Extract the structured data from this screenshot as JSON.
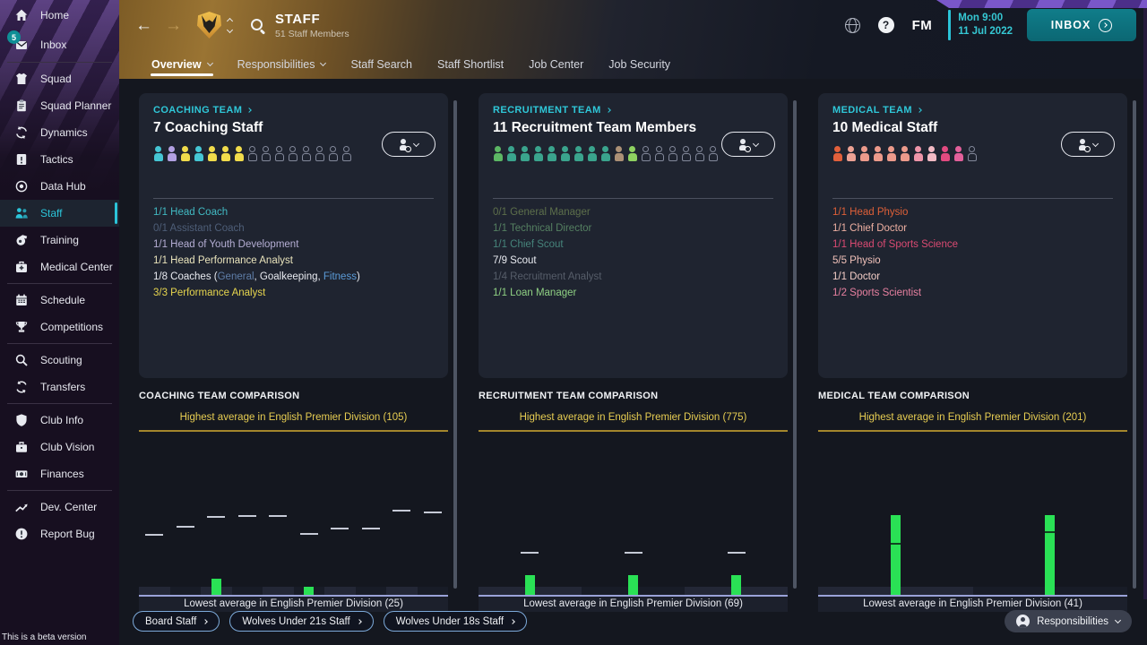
{
  "header": {
    "title": "STAFF",
    "subtitle": "51 Staff Members",
    "fm_label": "FM",
    "time": "Mon 9:00",
    "date": "11 Jul 2022",
    "inbox_label": "INBOX"
  },
  "tabs": [
    {
      "label": "Overview",
      "caret": true,
      "selected": true
    },
    {
      "label": "Responsibilities",
      "caret": true,
      "selected": false
    },
    {
      "label": "Staff Search",
      "caret": false,
      "selected": false
    },
    {
      "label": "Staff Shortlist",
      "caret": false,
      "selected": false
    },
    {
      "label": "Job Center",
      "caret": false,
      "selected": false
    },
    {
      "label": "Job Security",
      "caret": false,
      "selected": false
    }
  ],
  "sidebar": {
    "items": [
      {
        "label": "Home",
        "icon": "home"
      },
      {
        "label": "Inbox",
        "icon": "inbox",
        "badge": "5"
      },
      {
        "label": "Squad",
        "icon": "squad",
        "divider_above": true
      },
      {
        "label": "Squad Planner",
        "icon": "squad-planner"
      },
      {
        "label": "Dynamics",
        "icon": "dynamics"
      },
      {
        "label": "Tactics",
        "icon": "tactics"
      },
      {
        "label": "Data Hub",
        "icon": "data-hub"
      },
      {
        "label": "Staff",
        "icon": "staff",
        "selected": true
      },
      {
        "label": "Training",
        "icon": "training"
      },
      {
        "label": "Medical Center",
        "icon": "medical-center"
      },
      {
        "label": "Schedule",
        "icon": "schedule",
        "divider_above": true
      },
      {
        "label": "Competitions",
        "icon": "competitions"
      },
      {
        "label": "Scouting",
        "icon": "scouting",
        "divider_above": true
      },
      {
        "label": "Transfers",
        "icon": "transfers"
      },
      {
        "label": "Club Info",
        "icon": "club-info",
        "divider_above": true
      },
      {
        "label": "Club Vision",
        "icon": "club-vision"
      },
      {
        "label": "Finances",
        "icon": "finances"
      },
      {
        "label": "Dev. Center",
        "icon": "dev-center",
        "divider_above": true
      },
      {
        "label": "Report Bug",
        "icon": "report-bug"
      }
    ],
    "beta_note": "This is a beta version"
  },
  "teams": [
    {
      "section_label": "COACHING TEAM",
      "title": "7 Coaching Staff",
      "icons": {
        "filled": [
          "#45c6d4",
          "#b2a0e2",
          "#f1dc4b",
          "#45c6d4",
          "#f1dc4b",
          "#f1dc4b",
          "#f1dc4b"
        ],
        "empty": 8
      },
      "roles": [
        {
          "parts": [
            {
              "t": "1/1 Head Coach",
              "c": "#41b9c2"
            }
          ]
        },
        {
          "parts": [
            {
              "t": "0/1 Assistant Coach",
              "c": "#4e5e78"
            }
          ]
        },
        {
          "parts": [
            {
              "t": "1/1 Head of Youth Development",
              "c": "#b5aed4"
            }
          ]
        },
        {
          "parts": [
            {
              "t": "1/1 Head Performance Analyst",
              "c": "#eae4bc"
            }
          ]
        },
        {
          "parts": [
            {
              "t": "1/8 Coaches (",
              "c": "#e9ebf1"
            },
            {
              "t": "General",
              "c": "#5f7ea8"
            },
            {
              "t": ", ",
              "c": "#e9ebf1"
            },
            {
              "t": "Goalkeeping",
              "c": "#e9ebf1"
            },
            {
              "t": ", ",
              "c": "#e9ebf1"
            },
            {
              "t": "Fitness",
              "c": "#5b9bd8"
            },
            {
              "t": ")",
              "c": "#e9ebf1"
            }
          ]
        },
        {
          "parts": [
            {
              "t": "3/3 Performance Analyst",
              "c": "#e6d54e"
            }
          ]
        }
      ],
      "comparison": {
        "heading": "COACHING TEAM COMPARISON",
        "highest": "Highest average in English Premier Division (105)",
        "lowest": "Lowest average in English Premier Division (25)",
        "columns": [
          {
            "avg": 0.36
          },
          {
            "avg": 0.41
          },
          {
            "avg": 0.47,
            "bar": 0.1
          },
          {
            "avg": 0.48
          },
          {
            "avg": 0.48
          },
          {
            "avg": 0.37,
            "bar": 0.05
          },
          {
            "avg": 0.4
          },
          {
            "avg": 0.4
          },
          {
            "avg": 0.51
          },
          {
            "avg": 0.5
          }
        ]
      }
    },
    {
      "section_label": "RECRUITMENT TEAM",
      "title": "11 Recruitment Team Members",
      "icons": {
        "filled": [
          "#5cb764",
          "#3aa48d",
          "#3aa48d",
          "#3aa48d",
          "#3aa48d",
          "#3aa48d",
          "#3aa48d",
          "#3aa48d",
          "#3aa48d",
          "#ab9076",
          "#8ed160"
        ],
        "empty": 6
      },
      "roles": [
        {
          "parts": [
            {
              "t": "0/1 General Manager",
              "c": "#5d6f4b"
            }
          ]
        },
        {
          "parts": [
            {
              "t": "1/1 Technical Director",
              "c": "#558061"
            }
          ]
        },
        {
          "parts": [
            {
              "t": "1/1 Chief Scout",
              "c": "#46847b"
            }
          ]
        },
        {
          "parts": [
            {
              "t": "7/9 Scout",
              "c": "#e9ebf1"
            }
          ]
        },
        {
          "parts": [
            {
              "t": "1/4 Recruitment Analyst",
              "c": "#565d69"
            }
          ]
        },
        {
          "parts": [
            {
              "t": "1/1 Loan Manager",
              "c": "#8fd083"
            }
          ]
        }
      ],
      "comparison": {
        "heading": "RECRUITMENT TEAM COMPARISON",
        "highest": "Highest average in English Premier Division (775)",
        "lowest": "Lowest average in English Premier Division (69)",
        "columns": [
          {
            "avg": 0.25,
            "bar": 0.12
          },
          {
            "avg": 0.25,
            "bar": 0.12
          },
          {
            "avg": 0.25,
            "bar": 0.12
          }
        ]
      }
    },
    {
      "section_label": "MEDICAL TEAM",
      "title": "10 Medical Staff",
      "icons": {
        "filled": [
          "#e2603b",
          "#eda294",
          "#ec9a8b",
          "#ec9a8b",
          "#ec9a8b",
          "#ec9a8b",
          "#ee95a9",
          "#f2bac4",
          "#e24a80",
          "#e2609a"
        ],
        "empty": 1
      },
      "roles": [
        {
          "parts": [
            {
              "t": "1/1 Head Physio",
              "c": "#df6038"
            }
          ]
        },
        {
          "parts": [
            {
              "t": "1/1 Chief Doctor",
              "c": "#eeb0a2"
            }
          ]
        },
        {
          "parts": [
            {
              "t": "1/1 Head of Sports Science",
              "c": "#da4a72"
            }
          ]
        },
        {
          "parts": [
            {
              "t": "5/5 Physio",
              "c": "#f2c2ba"
            }
          ]
        },
        {
          "parts": [
            {
              "t": "1/1 Doctor",
              "c": "#f4cec7"
            }
          ]
        },
        {
          "parts": [
            {
              "t": "1/2 Sports Scientist",
              "c": "#e780a0"
            }
          ]
        }
      ],
      "comparison": {
        "heading": "MEDICAL TEAM COMPARISON",
        "highest": "Highest average in English Premier Division (201)",
        "lowest": "Lowest average in English Premier Division (41)",
        "columns": [
          {
            "avg": 0.31,
            "bar": 0.49
          },
          {
            "avg": 0.38,
            "bar": 0.49
          }
        ]
      }
    }
  ],
  "footer": {
    "buttons": [
      "Board Staff",
      "Wolves Under 21s Staff",
      "Wolves Under 18s Staff"
    ],
    "responsibilities_label": "Responsibilities"
  },
  "colors": {
    "accent_teal": "#2bc4d9",
    "gold_text": "#e7cd52",
    "bar_green": "#2ae155",
    "dash_light": "#c6cad6",
    "dash_dark": "rgba(12,40,24,0.85)"
  }
}
